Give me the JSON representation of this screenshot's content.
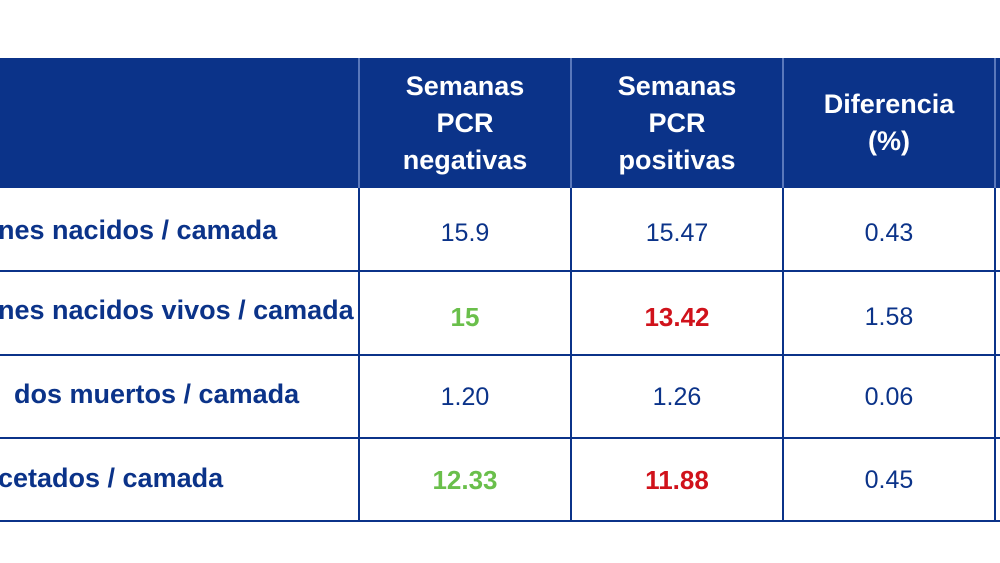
{
  "chart_data": {
    "type": "table",
    "columns": [
      "",
      "Semanas\nPCR\nnegativas",
      "Semanas\nPCR\npositivas",
      "Diferencia\n(%)"
    ],
    "rows": [
      {
        "label": "nes nacidos / camada",
        "values": [
          "15.9",
          "15.47",
          "0.43"
        ],
        "styles": [
          "normal",
          "normal",
          "normal"
        ]
      },
      {
        "label": "nes nacidos vivos / camada",
        "values": [
          "15",
          "13.42",
          "1.58"
        ],
        "styles": [
          "green",
          "red",
          "normal"
        ]
      },
      {
        "label": "dos muertos / camada",
        "values": [
          "1.20",
          "1.26",
          "0.06"
        ],
        "styles": [
          "normal",
          "normal",
          "normal"
        ]
      },
      {
        "label": "cetados / camada",
        "values": [
          "12.33",
          "11.88",
          "0.45"
        ],
        "styles": [
          "green",
          "red",
          "normal"
        ]
      }
    ],
    "colors": {
      "header": "#0b3389",
      "text": "#0b3389",
      "positive": "#6abf4b",
      "negative": "#d0121b"
    }
  }
}
